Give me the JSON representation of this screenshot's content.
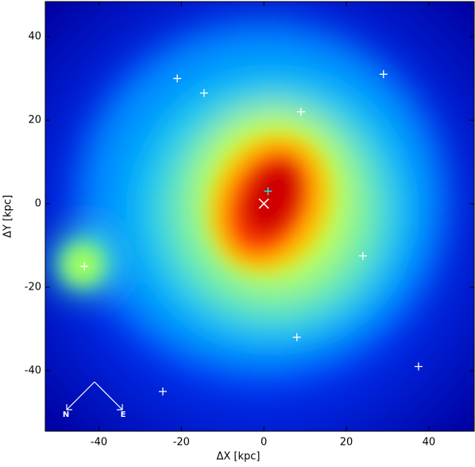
{
  "chart_data": {
    "type": "scatter",
    "xlabel": "ΔX [kpc]",
    "ylabel": "ΔY [kpc]",
    "xlim": [
      -53,
      51
    ],
    "ylim": [
      -54.5,
      48.4
    ],
    "xticks": [
      -40,
      -20,
      0,
      20,
      40
    ],
    "yticks": [
      -40,
      -20,
      0,
      20,
      40
    ],
    "series": [
      {
        "color": "#ffffff",
        "marker": "+",
        "x": [
          -21,
          -14.5,
          29,
          9,
          -43.5,
          24,
          8,
          37.5,
          -24.5
        ],
        "values": [
          30,
          26.5,
          31,
          22,
          -15,
          -12.5,
          -32,
          -39,
          -45
        ]
      },
      {
        "color": "#00ffff",
        "marker": "+",
        "x": [
          1
        ],
        "values": [
          3
        ]
      },
      {
        "color": "#ffffff",
        "marker": "x",
        "x": [
          0
        ],
        "values": [
          0
        ]
      }
    ],
    "annotations": [
      {
        "text": "N"
      },
      {
        "text": "E"
      }
    ]
  }
}
